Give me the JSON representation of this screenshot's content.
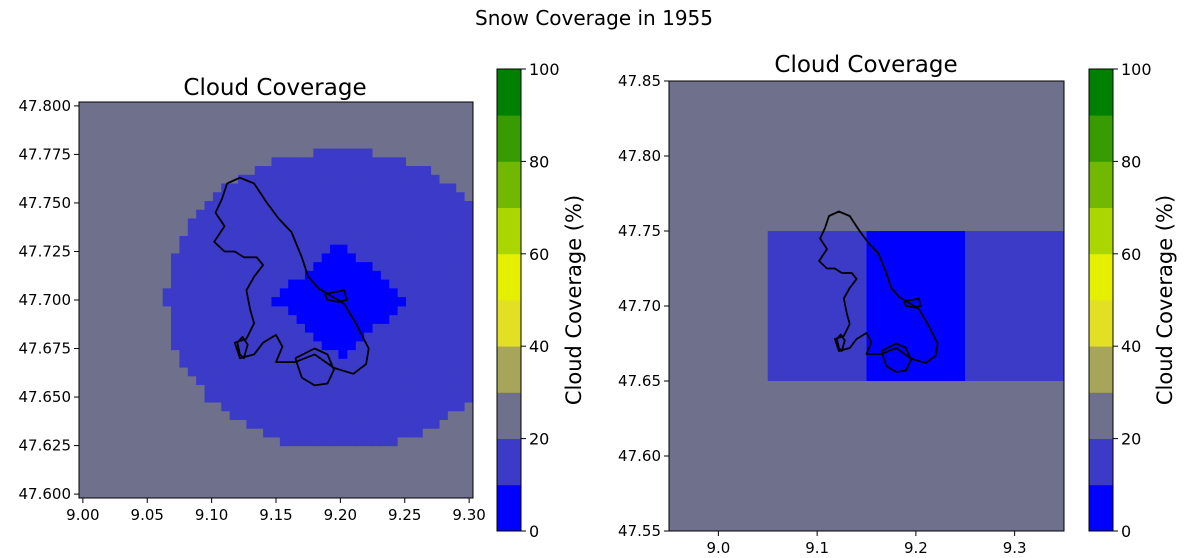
{
  "suptitle": "Snow Coverage in 1955",
  "colors": {
    "background_cloud": "#6f708c",
    "mid_cloud": "#3b3bc8",
    "low_cloud": "#0000ff",
    "outline": "#000000"
  },
  "colorbar": {
    "label": "Cloud Coverage (%)",
    "ticks": [
      "0",
      "20",
      "40",
      "60",
      "80",
      "100"
    ],
    "bins": [
      {
        "from": 0,
        "to": 10,
        "color": "#0000ff"
      },
      {
        "from": 10,
        "to": 20,
        "color": "#3b3bc8"
      },
      {
        "from": 20,
        "to": 30,
        "color": "#6f708c"
      },
      {
        "from": 30,
        "to": 40,
        "color": "#a6a55a"
      },
      {
        "from": 40,
        "to": 50,
        "color": "#e2e024"
      },
      {
        "from": 50,
        "to": 60,
        "color": "#e4f000"
      },
      {
        "from": 60,
        "to": 70,
        "color": "#acd600"
      },
      {
        "from": 70,
        "to": 80,
        "color": "#72b800"
      },
      {
        "from": 80,
        "to": 90,
        "color": "#389c00"
      },
      {
        "from": 90,
        "to": 100,
        "color": "#008000"
      }
    ]
  },
  "chart_data": [
    {
      "type": "heatmap",
      "title": "Cloud Coverage",
      "xlim": [
        8.997,
        9.303
      ],
      "ylim": [
        47.598,
        47.802
      ],
      "xticks": [
        9.0,
        9.05,
        9.1,
        9.15,
        9.2,
        9.25,
        9.3
      ],
      "xtick_labels": [
        "9.00",
        "9.05",
        "9.10",
        "9.15",
        "9.20",
        "9.25",
        "9.30"
      ],
      "yticks": [
        47.6,
        47.625,
        47.65,
        47.675,
        47.7,
        47.725,
        47.75,
        47.775,
        47.8
      ],
      "ytick_labels": [
        "47.600",
        "47.625",
        "47.650",
        "47.675",
        "47.700",
        "47.725",
        "47.750",
        "47.775",
        "47.800"
      ],
      "background_value_range": [
        20,
        30
      ],
      "regions": [
        {
          "name": "mid-cloud-disk",
          "value_range": [
            10,
            20
          ],
          "center": [
            9.2,
            47.7
          ],
          "shape": "disk",
          "radius_x": 0.135,
          "radius_y": 0.077
        },
        {
          "name": "low-cloud-diamond",
          "value_range": [
            0,
            10
          ],
          "center": [
            9.2,
            47.7
          ],
          "shape": "diamond",
          "radius_x": 0.052,
          "radius_y": 0.03
        }
      ]
    },
    {
      "type": "heatmap",
      "title": "Cloud Coverage",
      "xlim": [
        8.95,
        9.35
      ],
      "ylim": [
        47.55,
        47.85
      ],
      "xticks": [
        9.0,
        9.1,
        9.2,
        9.3
      ],
      "xtick_labels": [
        "9.0",
        "9.1",
        "9.2",
        "9.3"
      ],
      "yticks": [
        47.55,
        47.6,
        47.65,
        47.7,
        47.75,
        47.8,
        47.85
      ],
      "ytick_labels": [
        "47.55",
        "47.60",
        "47.65",
        "47.70",
        "47.75",
        "47.80",
        "47.85"
      ],
      "background_value_range": [
        20,
        30
      ],
      "cells": [
        {
          "x0": 9.05,
          "x1": 9.15,
          "y0": 47.65,
          "y1": 47.75,
          "value_range": [
            10,
            20
          ]
        },
        {
          "x0": 9.15,
          "x1": 9.25,
          "y0": 47.65,
          "y1": 47.75,
          "value_range": [
            0,
            10
          ]
        },
        {
          "x0": 9.25,
          "x1": 9.35,
          "y0": 47.65,
          "y1": 47.75,
          "value_range": [
            10,
            20
          ]
        }
      ]
    }
  ],
  "lake_outline": {
    "main": [
      [
        9.143,
        47.75
      ],
      [
        9.133,
        47.76
      ],
      [
        9.122,
        47.763
      ],
      [
        9.112,
        47.76
      ],
      [
        9.108,
        47.752
      ],
      [
        9.103,
        47.745
      ],
      [
        9.11,
        47.738
      ],
      [
        9.102,
        47.73
      ],
      [
        9.11,
        47.725
      ],
      [
        9.118,
        47.725
      ],
      [
        9.125,
        47.722
      ],
      [
        9.135,
        47.722
      ],
      [
        9.14,
        47.718
      ],
      [
        9.133,
        47.712
      ],
      [
        9.127,
        47.705
      ],
      [
        9.13,
        47.695
      ],
      [
        9.133,
        47.688
      ],
      [
        9.127,
        47.68
      ],
      [
        9.118,
        47.678
      ],
      [
        9.122,
        47.67
      ],
      [
        9.133,
        47.672
      ],
      [
        9.14,
        47.678
      ],
      [
        9.15,
        47.682
      ],
      [
        9.155,
        47.676
      ],
      [
        9.15,
        47.668
      ],
      [
        9.165,
        47.668
      ],
      [
        9.18,
        47.672
      ],
      [
        9.195,
        47.665
      ],
      [
        9.21,
        47.662
      ],
      [
        9.22,
        47.667
      ],
      [
        9.222,
        47.675
      ],
      [
        9.212,
        47.688
      ],
      [
        9.203,
        47.698
      ],
      [
        9.193,
        47.702
      ],
      [
        9.183,
        47.706
      ],
      [
        9.175,
        47.712
      ],
      [
        9.17,
        47.722
      ],
      [
        9.162,
        47.735
      ],
      [
        9.152,
        47.742
      ],
      [
        9.143,
        47.75
      ]
    ],
    "island": [
      [
        9.188,
        47.703
      ],
      [
        9.195,
        47.704
      ],
      [
        9.203,
        47.705
      ],
      [
        9.205,
        47.7
      ],
      [
        9.198,
        47.699
      ],
      [
        9.19,
        47.7
      ],
      [
        9.188,
        47.703
      ]
    ],
    "reichenau": [
      [
        9.12,
        47.678
      ],
      [
        9.124,
        47.681
      ],
      [
        9.128,
        47.677
      ],
      [
        9.125,
        47.67
      ],
      [
        9.122,
        47.672
      ],
      [
        9.12,
        47.678
      ]
    ],
    "south_basin": [
      [
        9.165,
        47.67
      ],
      [
        9.18,
        47.675
      ],
      [
        9.19,
        47.672
      ],
      [
        9.195,
        47.664
      ],
      [
        9.19,
        47.657
      ],
      [
        9.18,
        47.656
      ],
      [
        9.17,
        47.66
      ],
      [
        9.165,
        47.67
      ]
    ]
  }
}
